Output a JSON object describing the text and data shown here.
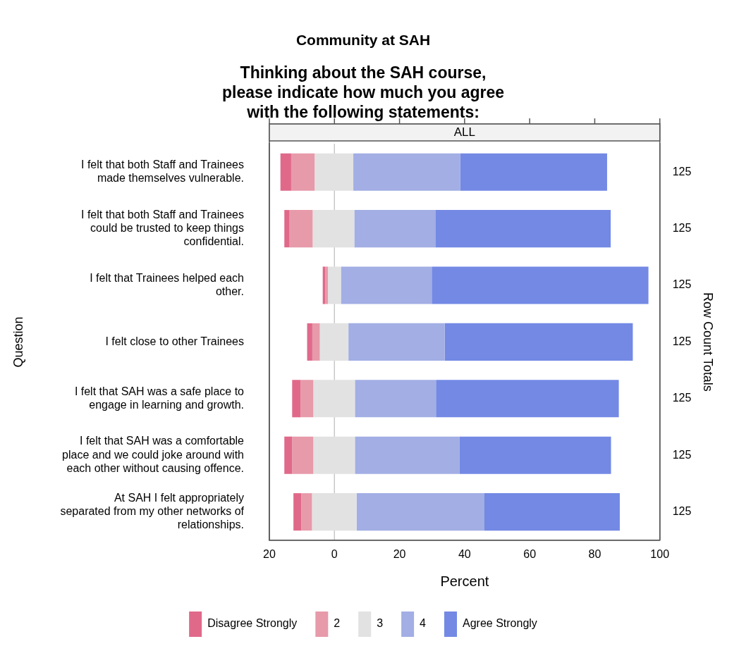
{
  "chart_data": {
    "type": "bar",
    "orientation": "horizontal",
    "title": "Community at SAH",
    "subtitle": "Thinking about the SAH course, please indicate how much you agree with the following statements:",
    "xlabel": "Percent",
    "ylabel": "Question",
    "y2label": "Row Count Totals",
    "annotations": [
      "ALL"
    ],
    "categories": [
      "I felt that both Staff and Trainees made themselves vulnerable.",
      "I felt that both Staff and Trainees could be trusted to keep things confidential.",
      "I felt that Trainees helped each other.",
      "I felt close to other Trainees",
      "I felt that SAH was a safe place to engage in learning and growth.",
      "I felt that SAH was a comfortable place and we could joke around with each other without causing offence.",
      "At SAH I felt appropriately separated from my other networks of relationships."
    ],
    "y2_categories": [
      "125",
      "125",
      "125",
      "125",
      "125",
      "125",
      "125"
    ],
    "series": [
      {
        "name": "Disagree Strongly",
        "color": "#e0698a",
        "base": [
          -16.6,
          -15.4,
          -3.6,
          -8.4,
          -13.0,
          -15.4,
          -12.6
        ],
        "values": [
          3.3,
          1.6,
          0.8,
          1.6,
          2.6,
          2.4,
          2.4
        ]
      },
      {
        "name": "2",
        "color": "#e79aaa",
        "base": [
          -13.3,
          -13.8,
          -2.8,
          -6.8,
          -10.4,
          -13.0,
          -10.2
        ],
        "values": [
          7.2,
          7.1,
          0.8,
          2.3,
          3.9,
          6.5,
          3.3
        ]
      },
      {
        "name": "3",
        "color": "#e2e2e2",
        "base": [
          -6.1,
          -6.7,
          -2.0,
          -4.5,
          -6.5,
          -6.5,
          -6.9
        ],
        "values": [
          11.9,
          12.8,
          4.0,
          8.8,
          12.8,
          12.8,
          13.7
        ]
      },
      {
        "name": "4",
        "color": "#a2aee4",
        "base": [
          5.8,
          6.1,
          2.0,
          4.3,
          6.3,
          6.3,
          6.8
        ],
        "values": [
          32.9,
          24.9,
          27.9,
          29.6,
          24.9,
          32.2,
          39.3
        ]
      },
      {
        "name": "Agree Strongly",
        "color": "#7389e4",
        "base": [
          38.7,
          31.0,
          29.9,
          33.9,
          31.2,
          38.5,
          46.1
        ],
        "values": [
          45.1,
          53.9,
          66.6,
          57.8,
          56.2,
          46.5,
          41.6
        ]
      }
    ],
    "xlim": [
      -20,
      100
    ],
    "xticks": [
      {
        "value": -20,
        "label": "20"
      },
      0,
      20,
      40,
      60,
      80,
      100
    ],
    "ref_lines": [
      {
        "axis": "x",
        "value": 0,
        "color": "#c8c8c8"
      }
    ],
    "legend": "bottom"
  }
}
